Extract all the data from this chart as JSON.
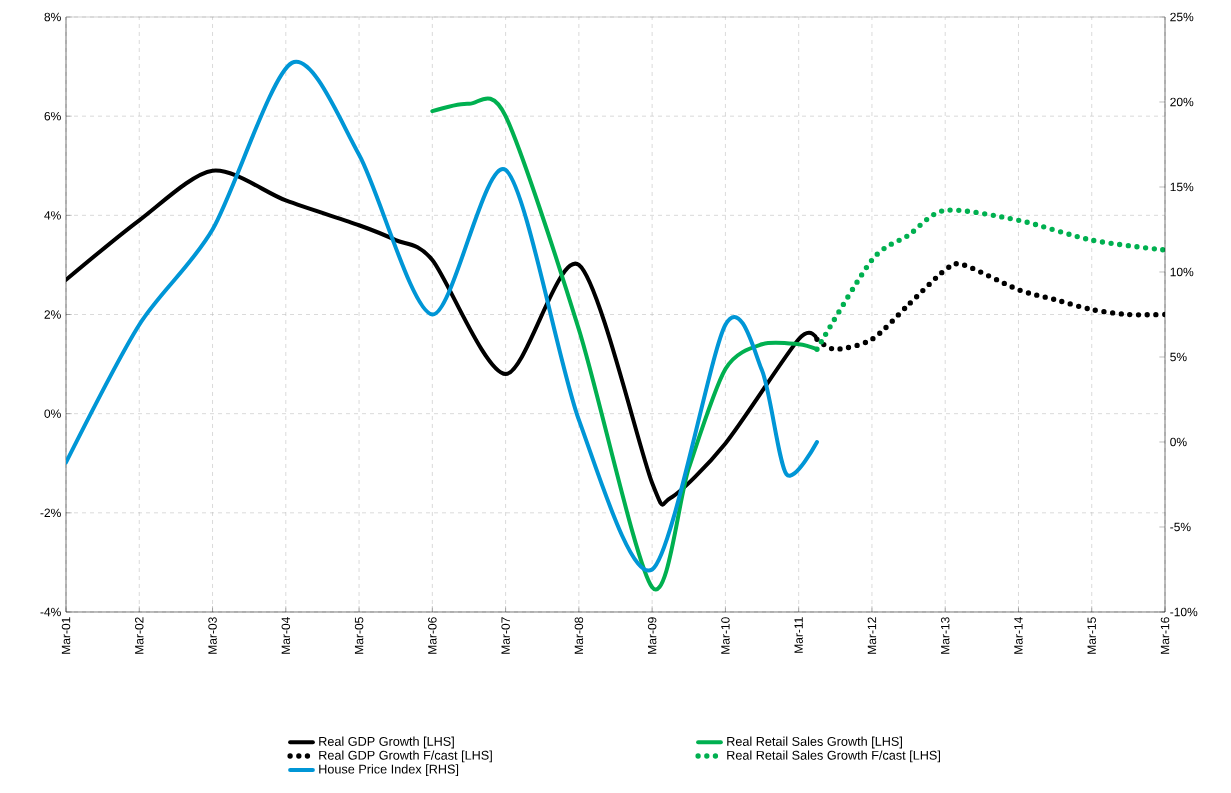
{
  "chart_data": {
    "type": "line",
    "grid": true,
    "legend": "bottom",
    "marker": "none",
    "xlim": [
      "2001-03",
      "2016-03"
    ],
    "xticks": [
      {
        "value": "2001-03",
        "label": "Mar-01"
      },
      {
        "value": "2002-03",
        "label": "Mar-02"
      },
      {
        "value": "2003-03",
        "label": "Mar-03"
      },
      {
        "value": "2004-03",
        "label": "Mar-04"
      },
      {
        "value": "2005-03",
        "label": "Mar-05"
      },
      {
        "value": "2006-03",
        "label": "Mar-06"
      },
      {
        "value": "2007-03",
        "label": "Mar-07"
      },
      {
        "value": "2008-03",
        "label": "Mar-08"
      },
      {
        "value": "2009-03",
        "label": "Mar-09"
      },
      {
        "value": "2010-03",
        "label": "Mar-10"
      },
      {
        "value": "2011-03",
        "label": "Mar-11"
      },
      {
        "value": "2012-03",
        "label": "Mar-12"
      },
      {
        "value": "2013-03",
        "label": "Mar-13"
      },
      {
        "value": "2014-03",
        "label": "Mar-14"
      },
      {
        "value": "2015-03",
        "label": "Mar-15"
      },
      {
        "value": "2016-03",
        "label": "Mar-16"
      }
    ],
    "ylim": [
      -4,
      8
    ],
    "yticks": [
      {
        "value": -4,
        "label": "-4%"
      },
      {
        "value": -2,
        "label": "-2%"
      },
      {
        "value": 0,
        "label": "0%"
      },
      {
        "value": 2,
        "label": "2%"
      },
      {
        "value": 4,
        "label": "4%"
      },
      {
        "value": 6,
        "label": "6%"
      },
      {
        "value": 8,
        "label": "8%"
      }
    ],
    "y2lim": [
      -10,
      25
    ],
    "y2ticks": [
      {
        "value": -10,
        "label": "-10%"
      },
      {
        "value": -5,
        "label": "-5%"
      },
      {
        "value": 0,
        "label": "0%"
      },
      {
        "value": 5,
        "label": "5%"
      },
      {
        "value": 10,
        "label": "10%"
      },
      {
        "value": 15,
        "label": "15%"
      },
      {
        "value": 20,
        "label": "20%"
      },
      {
        "value": 25,
        "label": "25%"
      }
    ],
    "series": [
      {
        "name": "Real GDP Growth [LHS]",
        "color": "#000000",
        "line_style": "solid",
        "x": [
          "2001-03",
          "2002-03",
          "2003-03",
          "2004-03",
          "2005-03",
          "2005-09",
          "2006-03",
          "2007-03",
          "2008-03",
          "2009-03",
          "2009-06",
          "2010-03",
          "2011-03",
          "2011-06"
        ],
        "values": [
          2.7,
          3.9,
          4.9,
          4.3,
          3.8,
          3.5,
          3.1,
          0.8,
          3.0,
          -1.4,
          -1.7,
          -0.6,
          1.5,
          1.5
        ]
      },
      {
        "name": "Real Retail Sales Growth [LHS]",
        "color": "#00b050",
        "line_style": "solid",
        "x": [
          "2006-03",
          "2006-09",
          "2007-03",
          "2008-03",
          "2009-03",
          "2009-09",
          "2010-03",
          "2010-09",
          "2011-03",
          "2011-06"
        ],
        "values": [
          6.1,
          6.25,
          6.0,
          1.7,
          -3.5,
          -1.1,
          0.9,
          1.4,
          1.4,
          1.3
        ]
      },
      {
        "name": "Real GDP Growth F/cast [LHS]",
        "color": "#000000",
        "line_style": "dotted",
        "x": [
          "2011-06",
          "2011-09",
          "2012-03",
          "2012-09",
          "2013-03",
          "2013-06",
          "2014-03",
          "2014-09",
          "2015-03",
          "2015-09",
          "2016-03"
        ],
        "values": [
          1.5,
          1.3,
          1.5,
          2.2,
          2.9,
          3.0,
          2.5,
          2.3,
          2.1,
          2.0,
          2.0
        ]
      },
      {
        "name": "Real Retail Sales Growth F/cast [LHS]",
        "color": "#00b050",
        "line_style": "dotted",
        "x": [
          "2011-06",
          "2012-03",
          "2012-09",
          "2013-03",
          "2014-03",
          "2015-03",
          "2016-03"
        ],
        "values": [
          1.3,
          3.1,
          3.6,
          4.1,
          3.9,
          3.5,
          3.3
        ]
      },
      {
        "name": "House Price Index [RHS]",
        "color": "#0096d6",
        "line_style": "solid",
        "axis": "y2",
        "x": [
          "2001-03",
          "2002-03",
          "2003-03",
          "2004-04",
          "2005-03",
          "2006-03",
          "2007-03",
          "2008-03",
          "2009-03",
          "2010-03",
          "2010-09",
          "2011-01",
          "2011-06"
        ],
        "values": [
          -1.2,
          6.9,
          12.5,
          22.3,
          16.9,
          7.5,
          16.0,
          1.3,
          -7.5,
          6.9,
          4.2,
          -1.9,
          0
        ]
      }
    ]
  }
}
